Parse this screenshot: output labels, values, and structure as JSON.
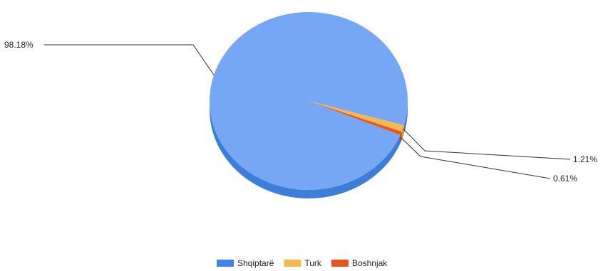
{
  "chart_data": {
    "type": "pie",
    "style": "3d",
    "legend_position": "bottom",
    "slices": [
      {
        "label": "Shqiptarë",
        "value": 98.18,
        "value_label": "98.18%",
        "color": "#76a7f4",
        "side_color": "#3d7fd8"
      },
      {
        "label": "Turk",
        "value": 1.21,
        "value_label": "1.21%",
        "color": "#f7b94e",
        "side_color": "#d9962a"
      },
      {
        "label": "Boshnjak",
        "value": 0.61,
        "value_label": "0.61%",
        "color": "#e8541e",
        "side_color": "#b8400f"
      }
    ]
  }
}
